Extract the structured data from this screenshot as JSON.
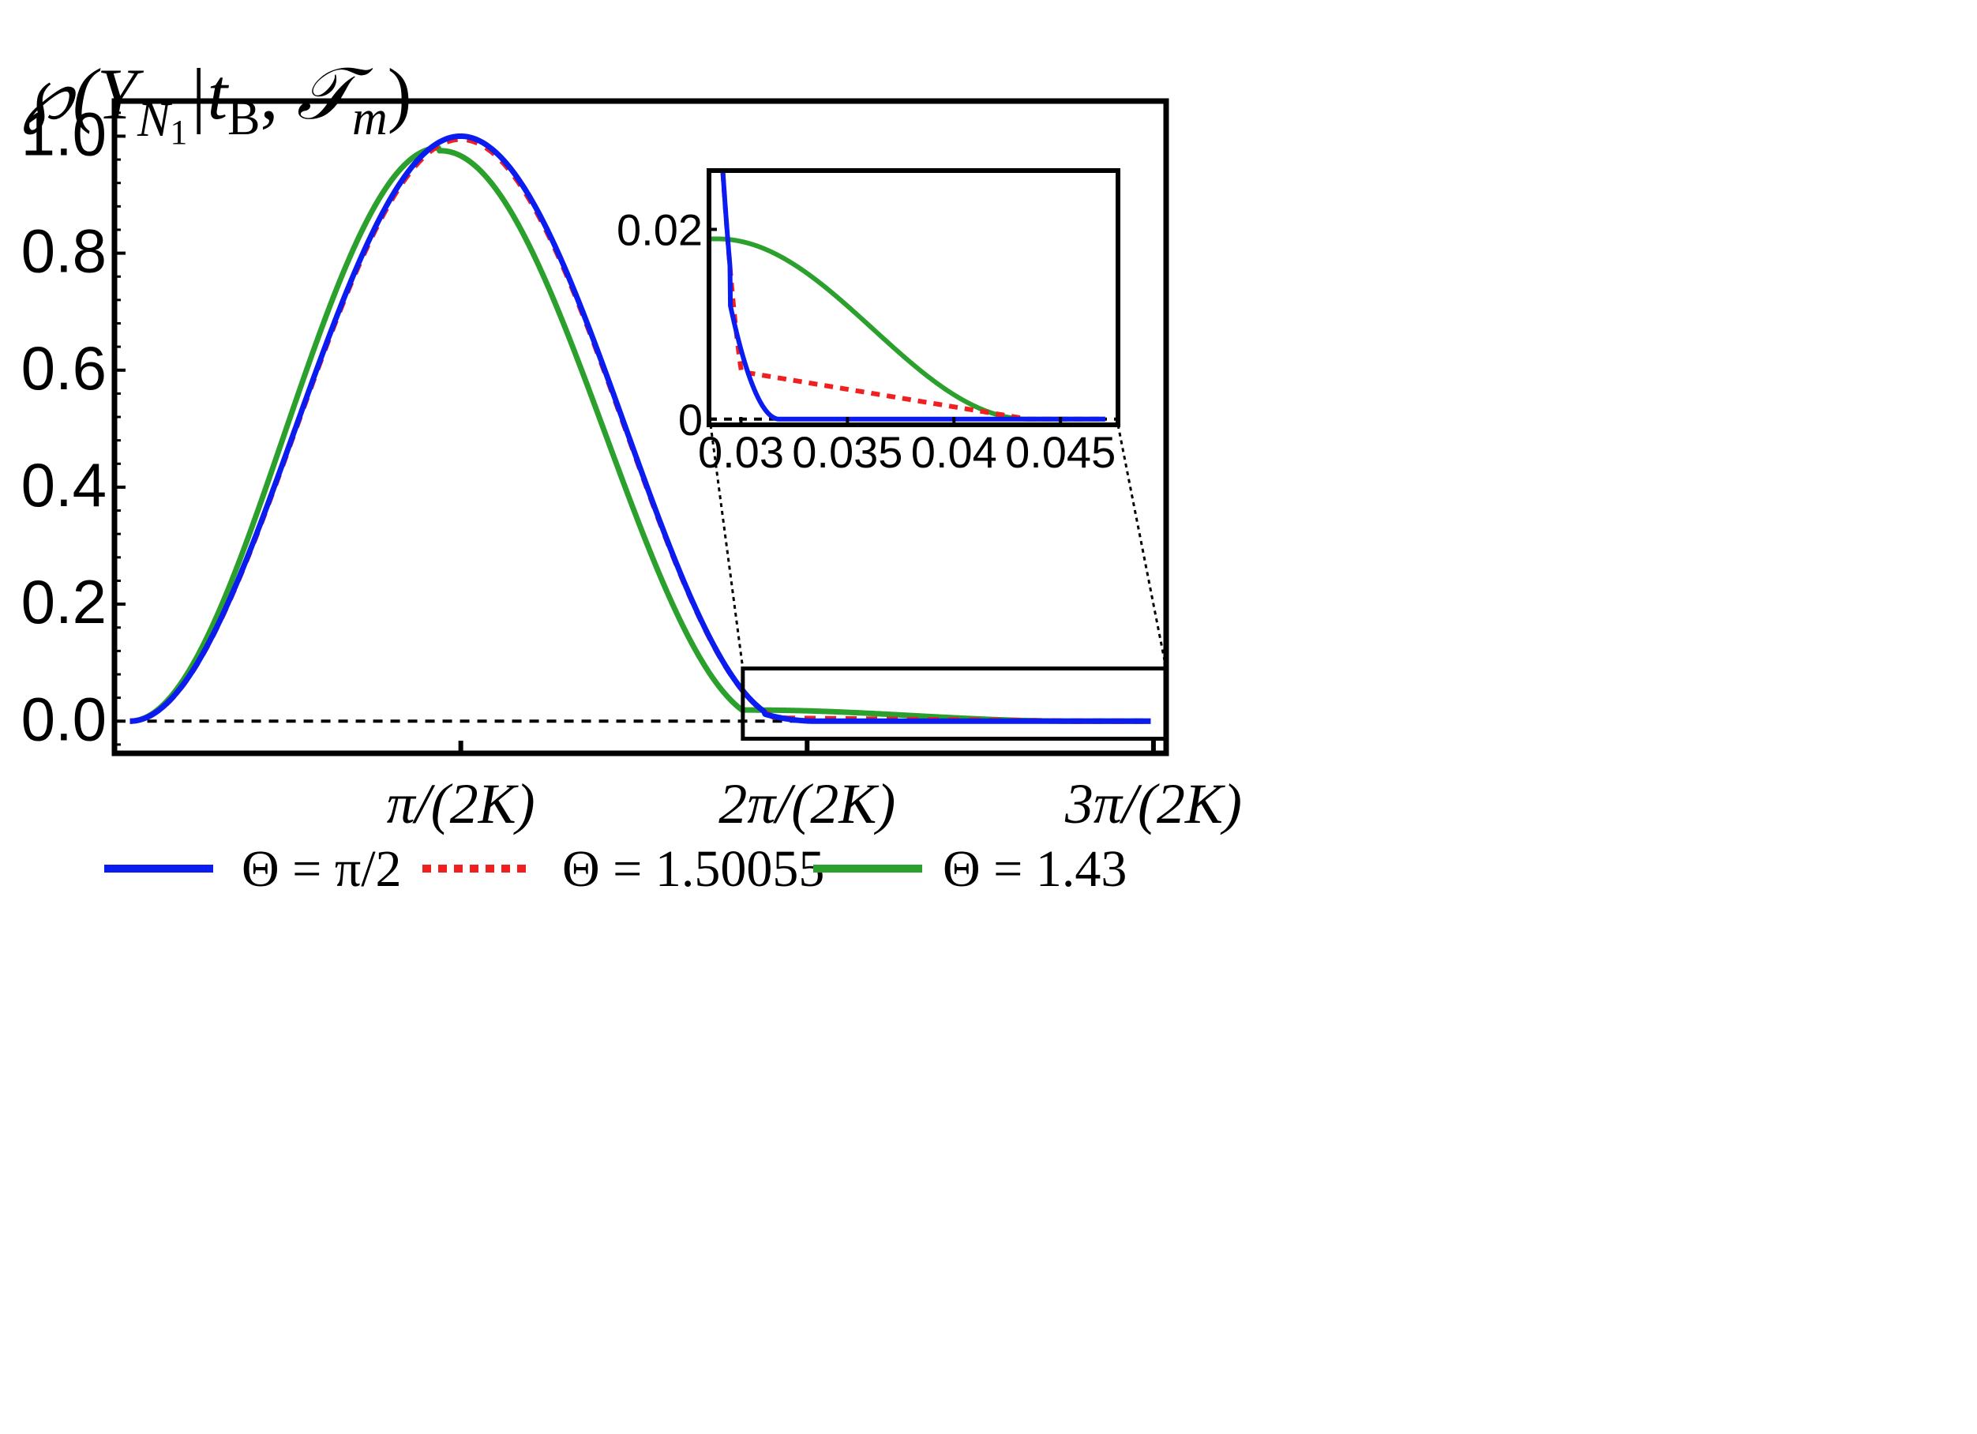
{
  "chart_data": {
    "type": "line",
    "title": "",
    "ylabel": "℘(Y_{N₁}|t_B, 𝒯_m)",
    "xlabel": "",
    "y_label_parts": {
      "main": "℘(Y",
      "sub": "N",
      "subsub": "1",
      "mid": "|t",
      "sub2": "B",
      "tail": ", ",
      "cal": "𝒯",
      "sub3": "m",
      "close": ")"
    },
    "xlim": [
      0,
      0.0477
    ],
    "ylim": [
      -0.055,
      1.06
    ],
    "x_ticks": [
      {
        "value": 0.015708,
        "label": "π/(2K)"
      },
      {
        "value": 0.031416,
        "label": "2π/(2K)"
      },
      {
        "value": 0.047124,
        "label": "3π/(2K)"
      }
    ],
    "y_ticks": [
      {
        "value": 0,
        "label": "0.0"
      },
      {
        "value": 0.2,
        "label": "0.2"
      },
      {
        "value": 0.4,
        "label": "0.4"
      },
      {
        "value": 0.6,
        "label": "0.6"
      },
      {
        "value": 0.8,
        "label": "0.8"
      },
      {
        "value": 1.0,
        "label": "1.0"
      }
    ],
    "K": 100,
    "x_start": 0.0007,
    "x_end": 0.047,
    "baseline": {
      "y": 0,
      "style": "dashed",
      "color": "#000000"
    },
    "series": [
      {
        "name": "Θ = π/2",
        "color": "#0a1cf0",
        "style": "solid",
        "breakpoints": [
          [
            0.0007,
            0.0
          ],
          [
            0.0157,
            1.0
          ],
          [
            0.0295,
            0.012
          ],
          [
            0.0318,
            0.0
          ],
          [
            0.047,
            0.0
          ]
        ]
      },
      {
        "name": "Θ = 1.50055",
        "color": "#f02020",
        "style": "dotted",
        "breakpoints": [
          [
            0.0007,
            0.0
          ],
          [
            0.0157,
            0.995
          ],
          [
            0.03,
            0.005
          ],
          [
            0.0435,
            0.0
          ],
          [
            0.047,
            0.0
          ]
        ]
      },
      {
        "name": "Θ = 1.43",
        "color": "#2ca02c",
        "style": "solid",
        "breakpoints": [
          [
            0.0007,
            0.0
          ],
          [
            0.0147,
            0.98
          ],
          [
            0.0289,
            0.019
          ],
          [
            0.0435,
            0.0
          ],
          [
            0.047,
            0.0
          ]
        ]
      }
    ],
    "zoom_box": {
      "xlim": [
        0.0285,
        0.0477
      ],
      "ylim": [
        -0.03,
        0.09
      ]
    },
    "inset": {
      "xlim": [
        0.0285,
        0.0477
      ],
      "ylim": [
        -0.0006,
        0.0262
      ],
      "x_ticks": [
        {
          "value": 0.03,
          "label": "0.03"
        },
        {
          "value": 0.035,
          "label": "0.035"
        },
        {
          "value": 0.04,
          "label": "0.04"
        },
        {
          "value": 0.045,
          "label": "0.045"
        }
      ],
      "y_ticks": [
        {
          "value": 0,
          "label": "0"
        },
        {
          "value": 0.02,
          "label": "0.02"
        }
      ]
    },
    "legend": {
      "placement": "bottom",
      "entries": [
        {
          "label": "Θ = π/2",
          "color": "#0a1cf0",
          "style": "solid"
        },
        {
          "label": "Θ = 1.50055",
          "color": "#f02020",
          "style": "dotted"
        },
        {
          "label": "Θ = 1.43",
          "color": "#2ca02c",
          "style": "solid"
        }
      ]
    }
  }
}
